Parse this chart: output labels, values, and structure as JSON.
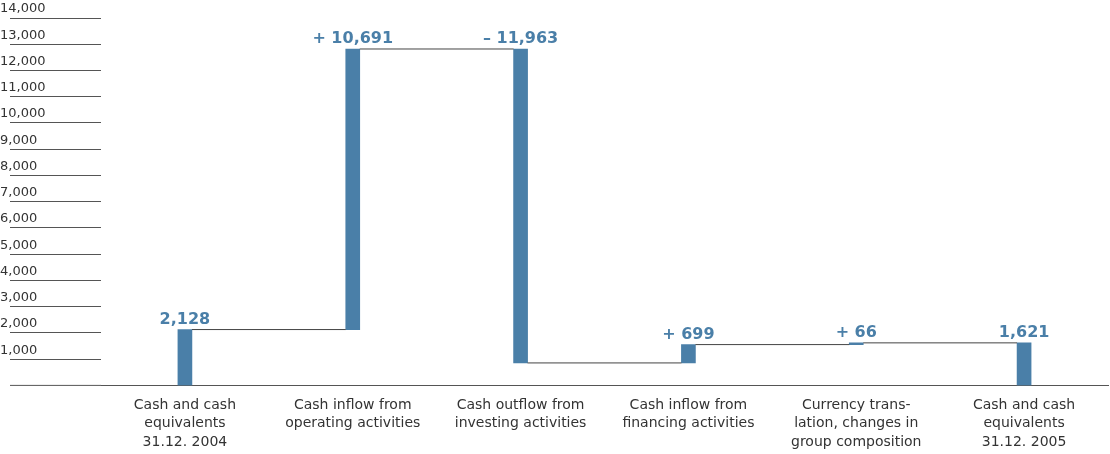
{
  "chart_data": {
    "type": "bar",
    "categories": [
      "Cash and cash\nequivalents\n31.12. 2004",
      "Cash inflow from\noperating activities",
      "Cash outflow from\ninvesting activities",
      "Cash inflow from\nfinancing activities",
      "Currency trans-\nlation, changes in\ngroup composition",
      "Cash and cash\nequivalents\n31.12. 2005"
    ],
    "values": [
      2128,
      10691,
      -11963,
      699,
      66,
      1621
    ],
    "base": [
      0,
      2128,
      12819,
      856,
      1555,
      0
    ],
    "value_labels": [
      "2,128",
      "+ 10,691",
      "– 11,963",
      "+ 699",
      "+ 66",
      "1,621"
    ],
    "color": "#4a7fa8",
    "ylim": [
      0,
      14000
    ],
    "yticks": [
      {
        "value": 1000,
        "label": "1,000"
      },
      {
        "value": 2000,
        "label": "2,000"
      },
      {
        "value": 3000,
        "label": "3,000"
      },
      {
        "value": 4000,
        "label": "4,000"
      },
      {
        "value": 5000,
        "label": "5,000"
      },
      {
        "value": 6000,
        "label": "6,000"
      },
      {
        "value": 7000,
        "label": "7,000"
      },
      {
        "value": 8000,
        "label": "8,000"
      },
      {
        "value": 9000,
        "label": "9,000"
      },
      {
        "value": 10000,
        "label": "10,000"
      },
      {
        "value": 11000,
        "label": "11,000"
      },
      {
        "value": 12000,
        "label": "12,000"
      },
      {
        "value": 13000,
        "label": "13,000"
      },
      {
        "value": 14000,
        "label": "14,000"
      }
    ],
    "grid": false
  }
}
